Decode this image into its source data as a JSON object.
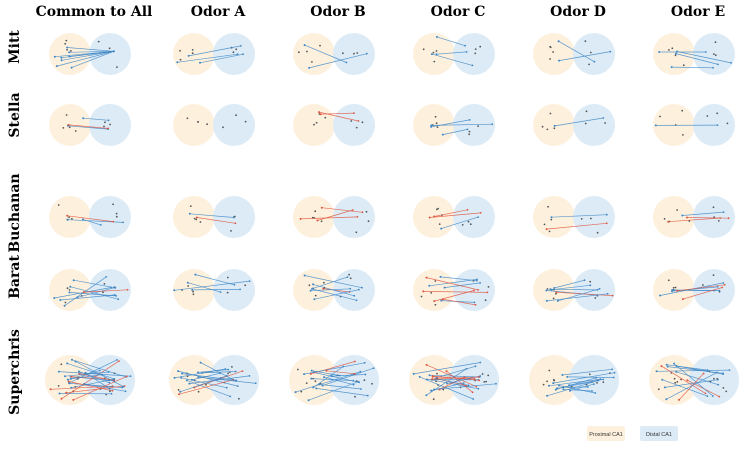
{
  "columns": [
    "Common to All",
    "Odor A",
    "Odor B",
    "Odor C",
    "Odor D",
    "Odor E"
  ],
  "rows": [
    "Mitt",
    "Stella",
    "Buchanan",
    "Barat",
    "Superchris"
  ],
  "legend": [
    {
      "label": "Proximal CA1",
      "color": "#fdf1de"
    },
    {
      "label": "Distal CA1",
      "color": "#dcebf6"
    }
  ],
  "colors": {
    "proximal_fill": "#fdf1de",
    "distal_fill": "#dcebf6",
    "line_blue": "#3d86c6",
    "line_red": "#e0533c",
    "node": "#555555"
  }
}
